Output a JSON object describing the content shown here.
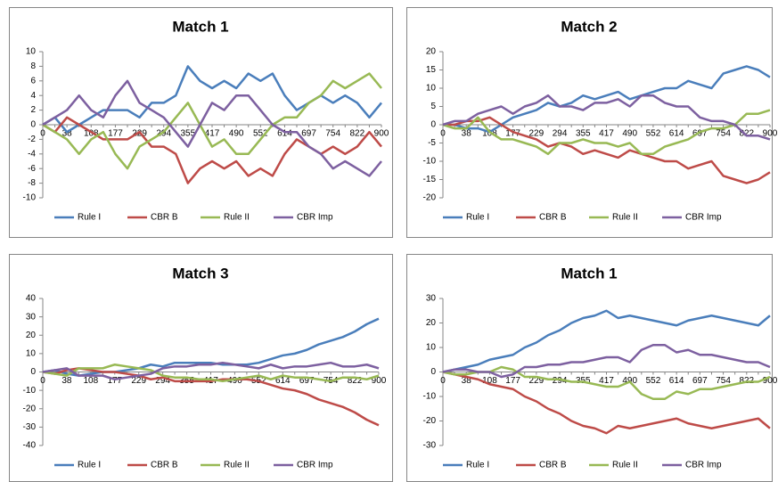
{
  "chart_data": [
    {
      "type": "line",
      "title": "Match 1",
      "categories": [
        "0",
        null,
        "38",
        null,
        "108",
        null,
        "177",
        null,
        "229",
        null,
        "294",
        null,
        "355",
        null,
        "417",
        null,
        "490",
        null,
        "552",
        null,
        "614",
        null,
        "697",
        null,
        "754",
        null,
        "822",
        null,
        "900"
      ],
      "series": [
        {
          "name": "Rule I",
          "color": "#4a7ebb",
          "values": [
            0,
            1,
            -1,
            0,
            1,
            2,
            2,
            2,
            1,
            3,
            3,
            4,
            8,
            6,
            5,
            6,
            5,
            7,
            6,
            7,
            4,
            2,
            3,
            4,
            3,
            4,
            3,
            1,
            3
          ]
        },
        {
          "name": "CBR B",
          "color": "#be4b48",
          "values": [
            0,
            -1,
            1,
            0,
            -1,
            -2,
            -2,
            -2,
            -1,
            -3,
            -3,
            -4,
            -8,
            -6,
            -5,
            -6,
            -5,
            -7,
            -6,
            -7,
            -4,
            -2,
            -3,
            -4,
            -3,
            -4,
            -3,
            -1,
            -3
          ]
        },
        {
          "name": "Rule II",
          "color": "#98b954",
          "values": [
            0,
            -1,
            -2,
            -4,
            -2,
            -1,
            -4,
            -6,
            -3,
            -2,
            -1,
            1,
            3,
            0,
            -3,
            -2,
            -4,
            -4,
            -2,
            0,
            1,
            1,
            3,
            4,
            6,
            5,
            6,
            7,
            5
          ]
        },
        {
          "name": "CBR Imp",
          "color": "#7d60a0",
          "values": [
            0,
            1,
            2,
            4,
            2,
            1,
            4,
            6,
            3,
            2,
            1,
            -1,
            -3,
            0,
            3,
            2,
            4,
            4,
            2,
            0,
            -1,
            -1,
            -3,
            -4,
            -6,
            -5,
            -6,
            -7,
            -5
          ]
        }
      ],
      "ylim": [
        -10,
        10
      ],
      "yticks": [
        -10,
        -8,
        -6,
        -4,
        -2,
        0,
        2,
        4,
        6,
        8,
        10
      ],
      "grid": false,
      "legend": "bottom"
    },
    {
      "type": "line",
      "title": "Match 2",
      "categories": [
        "0",
        null,
        "38",
        null,
        "108",
        null,
        "177",
        null,
        "229",
        null,
        "294",
        null,
        "355",
        null,
        "417",
        null,
        "490",
        null,
        "552",
        null,
        "614",
        null,
        "697",
        null,
        "754",
        null,
        "822",
        null,
        "900"
      ],
      "series": [
        {
          "name": "Rule I",
          "color": "#4a7ebb",
          "values": [
            0,
            0,
            -1,
            -1,
            -2,
            0,
            2,
            3,
            4,
            6,
            5,
            6,
            8,
            7,
            8,
            9,
            7,
            8,
            9,
            10,
            10,
            12,
            11,
            10,
            14,
            15,
            16,
            15,
            13
          ]
        },
        {
          "name": "CBR B",
          "color": "#be4b48",
          "values": [
            0,
            0,
            1,
            1,
            2,
            0,
            -2,
            -3,
            -4,
            -6,
            -5,
            -6,
            -8,
            -7,
            -8,
            -9,
            -7,
            -8,
            -9,
            -10,
            -10,
            -12,
            -11,
            -10,
            -14,
            -15,
            -16,
            -15,
            -13
          ]
        },
        {
          "name": "Rule II",
          "color": "#98b954",
          "values": [
            0,
            -1,
            -1,
            2,
            -2,
            -4,
            -4,
            -5,
            -6,
            -8,
            -5,
            -5,
            -4,
            -5,
            -5,
            -6,
            -5,
            -8,
            -8,
            -6,
            -5,
            -4,
            -2,
            -1,
            -1,
            0,
            3,
            3,
            4
          ]
        },
        {
          "name": "CBR Imp",
          "color": "#7d60a0",
          "values": [
            0,
            1,
            1,
            3,
            4,
            5,
            3,
            5,
            6,
            8,
            5,
            5,
            4,
            6,
            6,
            7,
            5,
            8,
            8,
            6,
            5,
            5,
            2,
            1,
            1,
            0,
            -3,
            -3,
            -4
          ]
        }
      ],
      "ylim": [
        -20,
        20
      ],
      "yticks": [
        -20,
        -15,
        -10,
        -5,
        0,
        5,
        10,
        15,
        20
      ],
      "grid": false,
      "legend": "bottom"
    },
    {
      "type": "line",
      "title": "Match 3",
      "categories": [
        "0",
        null,
        "38",
        null,
        "108",
        null,
        "177",
        null,
        "229",
        null,
        "294",
        null,
        "355",
        null,
        "417",
        null,
        "490",
        null,
        "552",
        null,
        "614",
        null,
        "697",
        null,
        "754",
        null,
        "822",
        null,
        "900"
      ],
      "series": [
        {
          "name": "Rule I",
          "color": "#4a7ebb",
          "values": [
            0,
            1,
            -1,
            -2,
            -1,
            0,
            0,
            1,
            2,
            4,
            3,
            5,
            5,
            5,
            5,
            4,
            4,
            4,
            5,
            7,
            9,
            10,
            12,
            15,
            17,
            19,
            22,
            26,
            29
          ]
        },
        {
          "name": "CBR B",
          "color": "#be4b48",
          "values": [
            0,
            -1,
            1,
            2,
            1,
            0,
            0,
            -1,
            -2,
            -4,
            -3,
            -5,
            -5,
            -5,
            -5,
            -4,
            -4,
            -4,
            -5,
            -7,
            -9,
            -10,
            -12,
            -15,
            -17,
            -19,
            -22,
            -26,
            -29
          ]
        },
        {
          "name": "Rule II",
          "color": "#98b954",
          "values": [
            0,
            -1,
            -2,
            2,
            2,
            2,
            4,
            3,
            2,
            1,
            -2,
            -3,
            -3,
            -4,
            -4,
            -5,
            -4,
            -3,
            -2,
            -4,
            -2,
            -3,
            -3,
            -4,
            -5,
            -3,
            -3,
            -4,
            -2
          ]
        },
        {
          "name": "CBR Imp",
          "color": "#7d60a0",
          "values": [
            0,
            1,
            2,
            -2,
            -2,
            -2,
            -4,
            -3,
            -2,
            -1,
            2,
            3,
            3,
            4,
            4,
            5,
            4,
            3,
            2,
            4,
            2,
            3,
            3,
            4,
            5,
            3,
            3,
            4,
            2
          ]
        }
      ],
      "ylim": [
        -40,
        40
      ],
      "yticks": [
        -40,
        -30,
        -20,
        -10,
        0,
        10,
        20,
        30,
        40
      ],
      "grid": false,
      "legend": "bottom"
    },
    {
      "type": "line",
      "title": "Match 1",
      "categories": [
        "0",
        null,
        "38",
        null,
        "108",
        null,
        "177",
        null,
        "229",
        null,
        "294",
        null,
        "355",
        null,
        "417",
        null,
        "490",
        null,
        "552",
        null,
        "614",
        null,
        "697",
        null,
        "754",
        null,
        "822",
        null,
        "900"
      ],
      "series": [
        {
          "name": "Rule I",
          "color": "#4a7ebb",
          "values": [
            0,
            1,
            2,
            3,
            5,
            6,
            7,
            10,
            12,
            15,
            17,
            20,
            22,
            23,
            25,
            22,
            23,
            22,
            21,
            20,
            19,
            21,
            22,
            23,
            22,
            21,
            20,
            19,
            23
          ]
        },
        {
          "name": "CBR B",
          "color": "#be4b48",
          "values": [
            0,
            -1,
            -2,
            -3,
            -5,
            -6,
            -7,
            -10,
            -12,
            -15,
            -17,
            -20,
            -22,
            -23,
            -25,
            -22,
            -23,
            -22,
            -21,
            -20,
            -19,
            -21,
            -22,
            -23,
            -22,
            -21,
            -20,
            -19,
            -23
          ]
        },
        {
          "name": "Rule II",
          "color": "#98b954",
          "values": [
            0,
            -1,
            -1,
            0,
            0,
            2,
            1,
            -2,
            -2,
            -3,
            -3,
            -4,
            -4,
            -5,
            -6,
            -6,
            -4,
            -9,
            -11,
            -11,
            -8,
            -9,
            -7,
            -7,
            -6,
            -5,
            -4,
            -4,
            -2
          ]
        },
        {
          "name": "CBR Imp",
          "color": "#7d60a0",
          "values": [
            0,
            1,
            1,
            0,
            0,
            -2,
            -1,
            2,
            2,
            3,
            3,
            4,
            4,
            5,
            6,
            6,
            4,
            9,
            11,
            11,
            8,
            9,
            7,
            7,
            6,
            5,
            4,
            4,
            2
          ]
        }
      ],
      "ylim": [
        -30,
        30
      ],
      "yticks": [
        -30,
        -20,
        -10,
        0,
        10,
        20,
        30
      ],
      "grid": false,
      "legend": "bottom"
    }
  ]
}
